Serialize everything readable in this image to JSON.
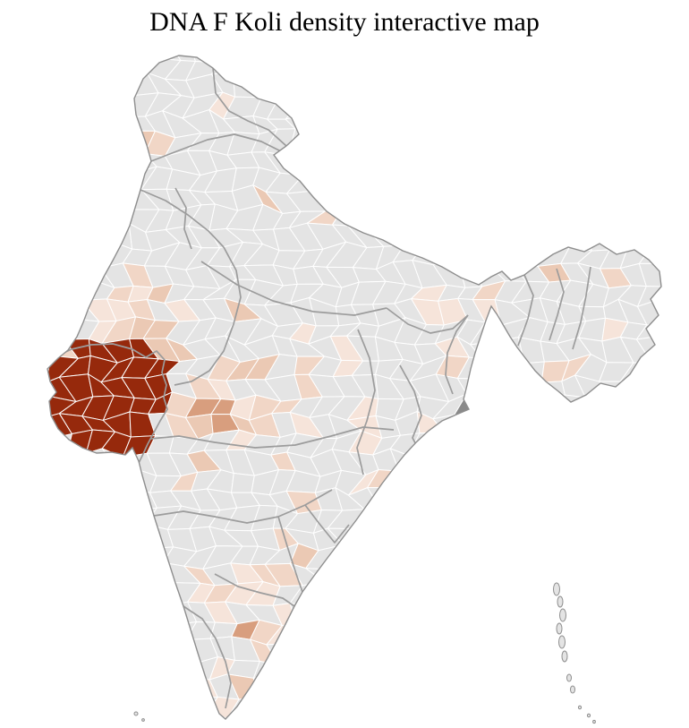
{
  "title": "DNA F Koli density interactive map",
  "map": {
    "name": "india-district-choropleth",
    "colors": {
      "background": "#ffffff",
      "land": "#e4e4e4",
      "district_border": "#ffffff",
      "state_border": "#9c9c9c",
      "outline": "#8e8e8e",
      "density_high": "#96290c",
      "density_medium": "#d89e7e",
      "density_low_1": "#f6e4da",
      "density_low_2": "#f1d6c6",
      "density_low_3": "#ebc9b4",
      "neutral_dark": "#8a8a8a"
    }
  }
}
